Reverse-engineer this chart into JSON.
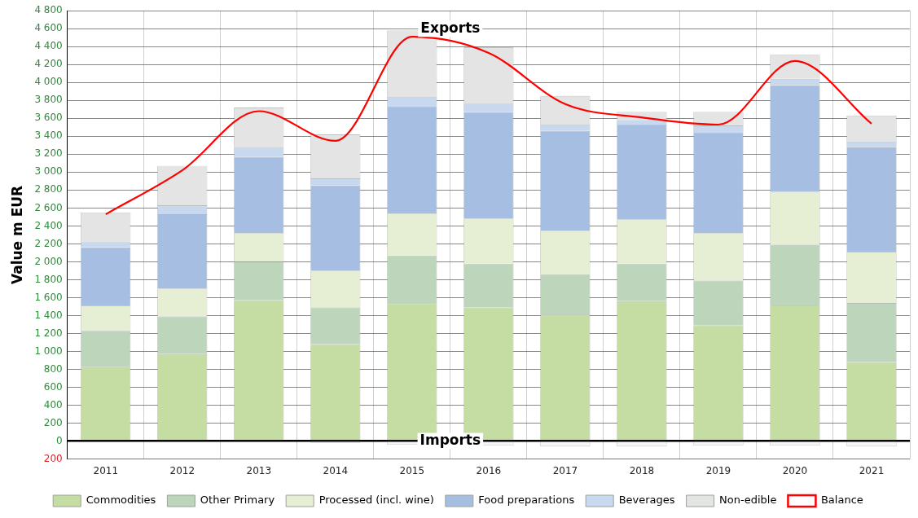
{
  "chart_data": {
    "type": "bar",
    "stacked": true,
    "ylabel": "Value m EUR",
    "categories": [
      "2011",
      "2012",
      "2013",
      "2014",
      "2015",
      "2016",
      "2017",
      "2018",
      "2019",
      "2020",
      "2021"
    ],
    "series": [
      {
        "name": "Commodities",
        "color": "#c5dca2",
        "values": [
          830,
          970,
          1570,
          1080,
          1530,
          1490,
          1410,
          1560,
          1290,
          1510,
          880
        ]
      },
      {
        "name": "Other Primary",
        "color": "#bdd5bb",
        "values": [
          400,
          420,
          430,
          410,
          540,
          490,
          450,
          420,
          500,
          680,
          660
        ]
      },
      {
        "name": "Processed (incl. wine)",
        "color": "#e6eed4",
        "values": [
          280,
          310,
          320,
          410,
          470,
          500,
          490,
          490,
          530,
          590,
          570
        ]
      },
      {
        "name": "Food preparations",
        "color": "#a6bee2",
        "values": [
          650,
          830,
          850,
          950,
          1190,
          1190,
          1110,
          1060,
          1120,
          1190,
          1170
        ]
      },
      {
        "name": "Beverages",
        "color": "#c8d8ef",
        "values": [
          60,
          100,
          110,
          80,
          110,
          100,
          70,
          50,
          80,
          70,
          60
        ]
      },
      {
        "name": "Non-edible",
        "color": "#e4e4e4",
        "values": [
          330,
          440,
          440,
          490,
          740,
          620,
          320,
          90,
          150,
          270,
          290
        ]
      },
      {
        "color": "#f6f6f6",
        "values": [
          0,
          -10,
          -10,
          -20,
          -40,
          -50,
          -60,
          -60,
          -50,
          -50,
          -60
        ]
      },
      {
        "name": "Balance",
        "type": "line",
        "color": "#ff0000",
        "values": [
          2530,
          3020,
          3680,
          3350,
          4510,
          4330,
          3760,
          3610,
          3530,
          4240,
          3540
        ]
      }
    ],
    "ylim": [
      -200,
      4800
    ],
    "yticks": [
      {
        "value": -200,
        "label": "200"
      },
      0,
      200,
      400,
      600,
      800,
      1000,
      1200,
      1400,
      1600,
      1800,
      2000,
      2200,
      2400,
      2600,
      2800,
      3000,
      3200,
      3400,
      3600,
      3800,
      4000,
      4200,
      4400,
      4600,
      4800
    ],
    "grid": true,
    "legend": "bottom",
    "marker": "none",
    "line_style": "solid",
    "annotations": [
      {
        "text": "Exports",
        "x": "2015",
        "y": 4600
      },
      {
        "text": "Imports",
        "x": "2015",
        "y": 0
      }
    ]
  }
}
